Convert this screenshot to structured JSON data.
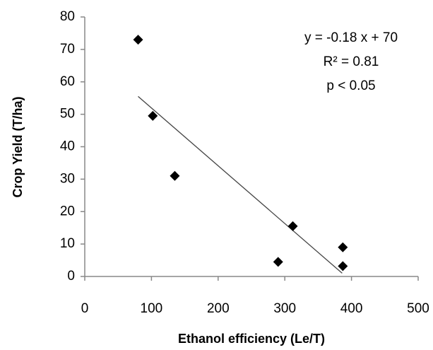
{
  "chart_data": {
    "type": "scatter",
    "xlabel": "Ethanol efficiency (Le/T)",
    "ylabel": "Crop Yield (T/ha)",
    "annotations": [
      "y = -0.18 x + 70",
      "R² = 0.81",
      "p < 0.05"
    ],
    "x": [
      80,
      102,
      135,
      312,
      290,
      387,
      387
    ],
    "values": [
      73,
      49.5,
      31,
      15.5,
      4.5,
      9,
      3.2
    ],
    "color": "#000000",
    "trendline": {
      "x": [
        80,
        386
      ],
      "values": [
        55.5,
        1
      ],
      "color": "#444444"
    },
    "xlim": [
      0,
      500
    ],
    "xticks": [
      0,
      100,
      200,
      300,
      400,
      500
    ],
    "ylim": [
      0,
      80
    ],
    "yticks": [
      0,
      10,
      20,
      30,
      40,
      50,
      60,
      70,
      80
    ]
  }
}
